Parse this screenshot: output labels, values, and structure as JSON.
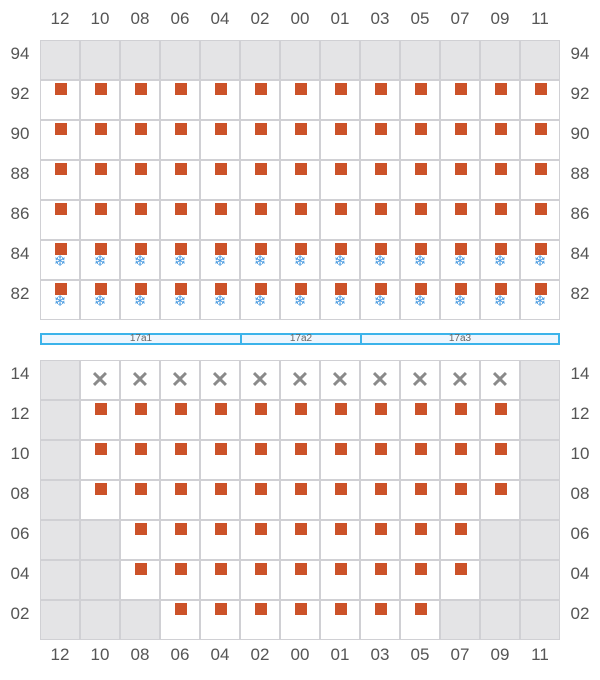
{
  "columns": [
    "12",
    "10",
    "08",
    "06",
    "04",
    "02",
    "00",
    "01",
    "03",
    "05",
    "07",
    "09",
    "11"
  ],
  "top_grid": {
    "rows": [
      {
        "label": "94",
        "cells": [
          "grey",
          "grey",
          "grey",
          "grey",
          "grey",
          "grey",
          "grey",
          "grey",
          "grey",
          "grey",
          "grey",
          "grey",
          "grey"
        ]
      },
      {
        "label": "92",
        "cells": [
          "sq",
          "sq",
          "sq",
          "sq",
          "sq",
          "sq",
          "sq",
          "sq",
          "sq",
          "sq",
          "sq",
          "sq",
          "sq"
        ]
      },
      {
        "label": "90",
        "cells": [
          "sq",
          "sq",
          "sq",
          "sq",
          "sq",
          "sq",
          "sq",
          "sq",
          "sq",
          "sq",
          "sq",
          "sq",
          "sq"
        ]
      },
      {
        "label": "88",
        "cells": [
          "sq",
          "sq",
          "sq",
          "sq",
          "sq",
          "sq",
          "sq",
          "sq",
          "sq",
          "sq",
          "sq",
          "sq",
          "sq"
        ]
      },
      {
        "label": "86",
        "cells": [
          "sq",
          "sq",
          "sq",
          "sq",
          "sq",
          "sq",
          "sq",
          "sq",
          "sq",
          "sq",
          "sq",
          "sq",
          "sq"
        ]
      },
      {
        "label": "84",
        "cells": [
          "sqsnow",
          "sqsnow",
          "sqsnow",
          "sqsnow",
          "sqsnow",
          "sqsnow",
          "sqsnow",
          "sqsnow",
          "sqsnow",
          "sqsnow",
          "sqsnow",
          "sqsnow",
          "sqsnow"
        ]
      },
      {
        "label": "82",
        "cells": [
          "sqsnow",
          "sqsnow",
          "sqsnow",
          "sqsnow",
          "sqsnow",
          "sqsnow",
          "sqsnow",
          "sqsnow",
          "sqsnow",
          "sqsnow",
          "sqsnow",
          "sqsnow",
          "sqsnow"
        ]
      }
    ]
  },
  "sections": [
    {
      "label": "17a1",
      "span": 5
    },
    {
      "label": "17a2",
      "span": 3
    },
    {
      "label": "17a3",
      "span": 5
    }
  ],
  "bottom_grid": {
    "rows": [
      {
        "label": "14",
        "cells": [
          "grey",
          "x",
          "x",
          "x",
          "x",
          "x",
          "x",
          "x",
          "x",
          "x",
          "x",
          "x",
          "grey"
        ]
      },
      {
        "label": "12",
        "cells": [
          "grey",
          "sq",
          "sq",
          "sq",
          "sq",
          "sq",
          "sq",
          "sq",
          "sq",
          "sq",
          "sq",
          "sq",
          "grey"
        ]
      },
      {
        "label": "10",
        "cells": [
          "grey",
          "sq",
          "sq",
          "sq",
          "sq",
          "sq",
          "sq",
          "sq",
          "sq",
          "sq",
          "sq",
          "sq",
          "grey"
        ]
      },
      {
        "label": "08",
        "cells": [
          "grey",
          "sq",
          "sq",
          "sq",
          "sq",
          "sq",
          "sq",
          "sq",
          "sq",
          "sq",
          "sq",
          "sq",
          "grey"
        ]
      },
      {
        "label": "06",
        "cells": [
          "grey",
          "grey",
          "sq",
          "sq",
          "sq",
          "sq",
          "sq",
          "sq",
          "sq",
          "sq",
          "sq",
          "grey",
          "grey"
        ]
      },
      {
        "label": "04",
        "cells": [
          "grey",
          "grey",
          "sq",
          "sq",
          "sq",
          "sq",
          "sq",
          "sq",
          "sq",
          "sq",
          "sq",
          "grey",
          "grey"
        ]
      },
      {
        "label": "02",
        "cells": [
          "grey",
          "grey",
          "grey",
          "sq",
          "sq",
          "sq",
          "sq",
          "sq",
          "sq",
          "sq",
          "grey",
          "grey",
          "grey"
        ]
      }
    ]
  },
  "colors": {
    "square": "#cc5229",
    "snowflake": "#4a9be0",
    "section_border": "#3bb3ea",
    "unavailable": "#e4e4e6"
  },
  "icons": {
    "sq": "orange-square-icon",
    "snow": "snowflake-icon",
    "x": "x-mark-icon"
  }
}
